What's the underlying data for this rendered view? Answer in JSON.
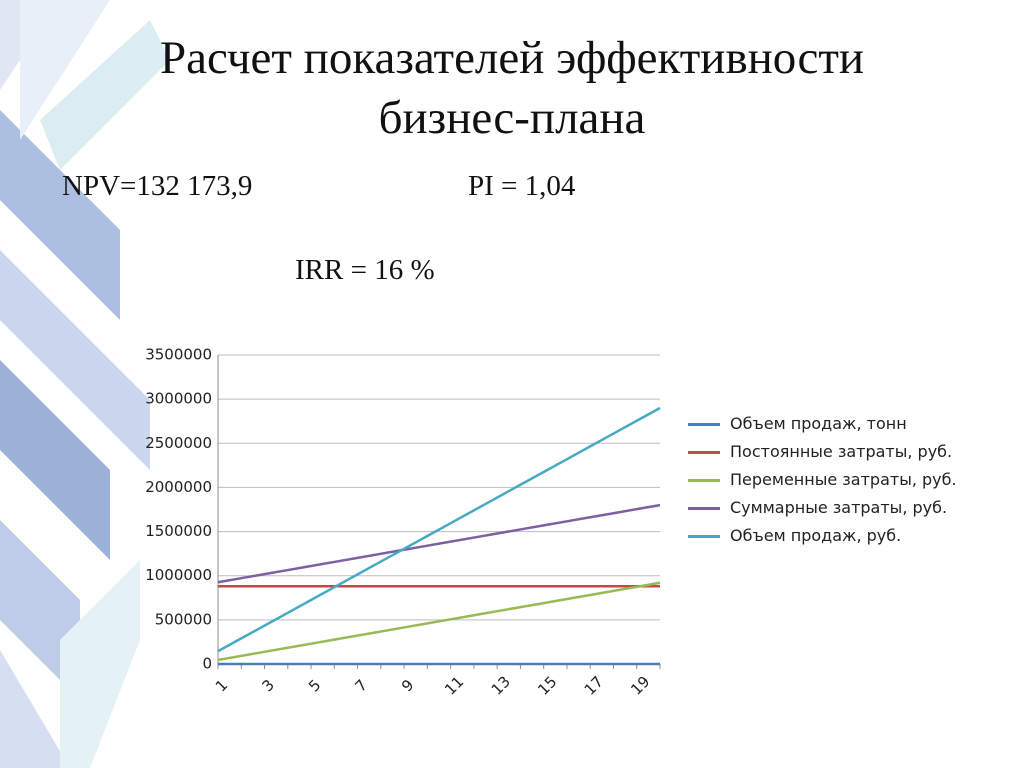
{
  "title": "Расчет показателей эффективности бизнес-плана",
  "metrics": [
    "NPV=132 173,9",
    "PI = 1,04",
    "IRR = 16 %"
  ],
  "chart_data": {
    "type": "line",
    "categories": [
      1,
      null,
      3,
      null,
      5,
      null,
      7,
      null,
      9,
      null,
      11,
      null,
      13,
      null,
      15,
      null,
      17,
      null,
      19,
      null
    ],
    "ylim": [
      0,
      3500000
    ],
    "yticks": [
      0,
      500000,
      1000000,
      1500000,
      2000000,
      2500000,
      3000000,
      3500000
    ],
    "grid": true,
    "legend": "right",
    "series": [
      {
        "name": "Объем продаж, тонн",
        "color": "#4a7ebb",
        "values": [
          0,
          0,
          0,
          0,
          0,
          0,
          0,
          0,
          0,
          0,
          0,
          0,
          0,
          0,
          0,
          0,
          0,
          0,
          0,
          0
        ]
      },
      {
        "name": "Постоянные затраты, руб.",
        "color": "#be4b48",
        "values": [
          880000,
          880000,
          880000,
          880000,
          880000,
          880000,
          880000,
          880000,
          880000,
          880000,
          880000,
          880000,
          880000,
          880000,
          880000,
          880000,
          880000,
          880000,
          880000,
          880000
        ]
      },
      {
        "name": "Переменные затраты, руб.",
        "color": "#98b954",
        "values": [
          46000,
          92000,
          138000,
          184000,
          230000,
          276000,
          322000,
          368000,
          414000,
          460000,
          506000,
          552000,
          598000,
          644000,
          690000,
          736000,
          782000,
          828000,
          874000,
          920000
        ]
      },
      {
        "name": "Суммарные затраты, руб.",
        "color": "#7d60a0",
        "values": [
          926000,
          972000,
          1018000,
          1064000,
          1110000,
          1156000,
          1202000,
          1248000,
          1294000,
          1340000,
          1386000,
          1432000,
          1478000,
          1524000,
          1570000,
          1616000,
          1662000,
          1708000,
          1754000,
          1800000
        ]
      },
      {
        "name": "Объем продаж, руб.",
        "color": "#46aac5",
        "values": [
          145000,
          290000,
          435000,
          580000,
          725000,
          870000,
          1015000,
          1160000,
          1305000,
          1450000,
          1595000,
          1740000,
          1885000,
          2030000,
          2175000,
          2320000,
          2465000,
          2610000,
          2755000,
          2900000
        ]
      }
    ]
  }
}
